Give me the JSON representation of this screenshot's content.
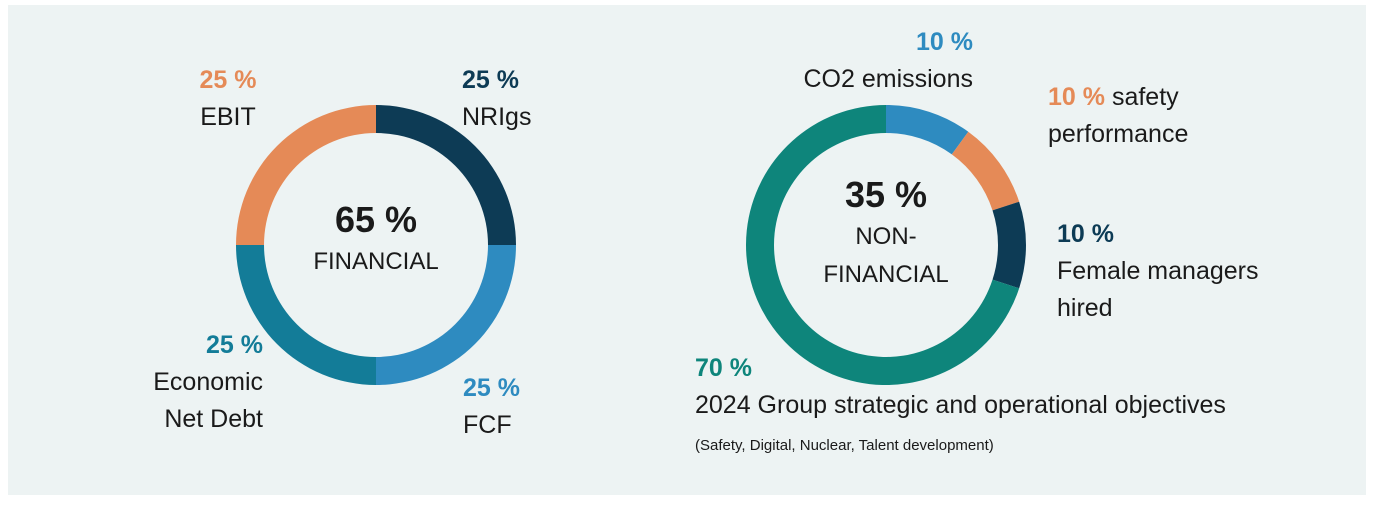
{
  "chart_data": [
    {
      "type": "donut",
      "center_title": "65 %",
      "center_text": "FINANCIAL",
      "categories": [
        "NRIgs",
        "FCF",
        "Economic Net Debt",
        "EBIT"
      ],
      "values": [
        25,
        25,
        25,
        25
      ],
      "value_labels": [
        "25 %",
        "25 %",
        "25 %",
        "25 %"
      ],
      "colors": [
        "#0d3b55",
        "#2e8bc0",
        "#137c98",
        "#e58a57"
      ]
    },
    {
      "type": "donut",
      "center_title": "35 %",
      "center_text": "NON-FINANCIAL",
      "categories": [
        "CO2 emissions",
        "safety performance",
        "Female managers hired",
        "2024 Group strategic and operational objectives"
      ],
      "values": [
        10,
        10,
        10,
        70
      ],
      "value_labels": [
        "10 %",
        "10 %",
        "10 %",
        "70 %"
      ],
      "colors": [
        "#2e8bc0",
        "#e58a57",
        "#0d3b55",
        "#0e857b"
      ],
      "note": "(Safety, Digital, Nuclear, Talent development)"
    }
  ]
}
